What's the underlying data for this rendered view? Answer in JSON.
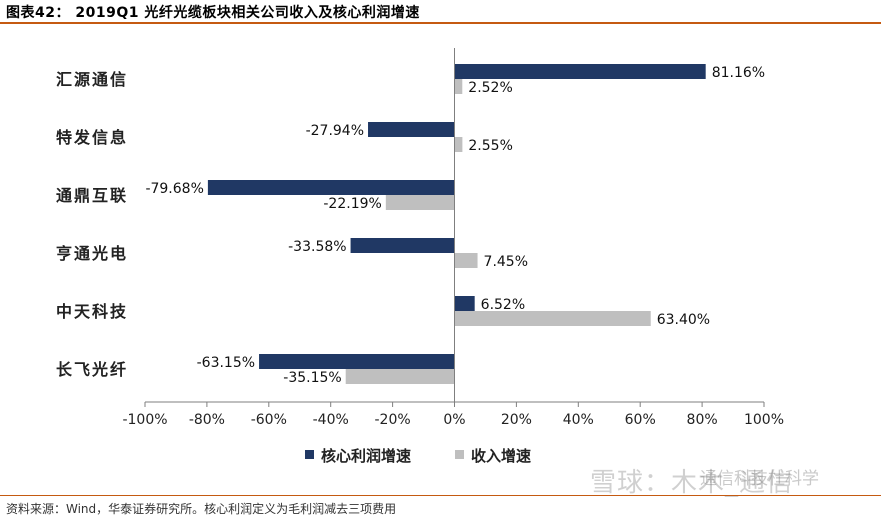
{
  "header": {
    "title": "图表42： 2019Q1 光纤光缆板块相关公司收入及核心利润增速"
  },
  "footer": {
    "source": "资料来源：Wind，华泰证券研究所。核心利润定义为毛利润减去三项费用"
  },
  "watermark": {
    "main": "雪球：木木_通信",
    "secondary": "通信科技杜科学"
  },
  "colors": {
    "series1": "#203864",
    "series2": "#bfbfbf",
    "accent": "#c55a11"
  },
  "chart_data": {
    "type": "bar",
    "orientation": "horizontal",
    "categories": [
      "汇源通信",
      "特发信息",
      "通鼎互联",
      "亨通光电",
      "中天科技",
      "长飞光纤"
    ],
    "series": [
      {
        "name": "核心利润增速",
        "values": [
          81.16,
          -27.94,
          -79.68,
          -33.58,
          6.52,
          -63.15
        ],
        "labels": [
          "81.16%",
          "-27.94%",
          "-79.68%",
          "-33.58%",
          "6.52%",
          "-63.15%"
        ]
      },
      {
        "name": "收入增速",
        "values": [
          2.52,
          2.55,
          -22.19,
          7.45,
          63.4,
          -35.15
        ],
        "labels": [
          "2.52%",
          "2.55%",
          "-22.19%",
          "7.45%",
          "63.40%",
          "-35.15%"
        ]
      }
    ],
    "xlim": [
      -100,
      100
    ],
    "xticks": [
      -100,
      -80,
      -60,
      -40,
      -20,
      0,
      20,
      40,
      60,
      80,
      100
    ],
    "xtick_labels": [
      "-100%",
      "-80%",
      "-60%",
      "-40%",
      "-20%",
      "0%",
      "20%",
      "40%",
      "60%",
      "80%",
      "100%"
    ],
    "legend_position": "bottom"
  }
}
